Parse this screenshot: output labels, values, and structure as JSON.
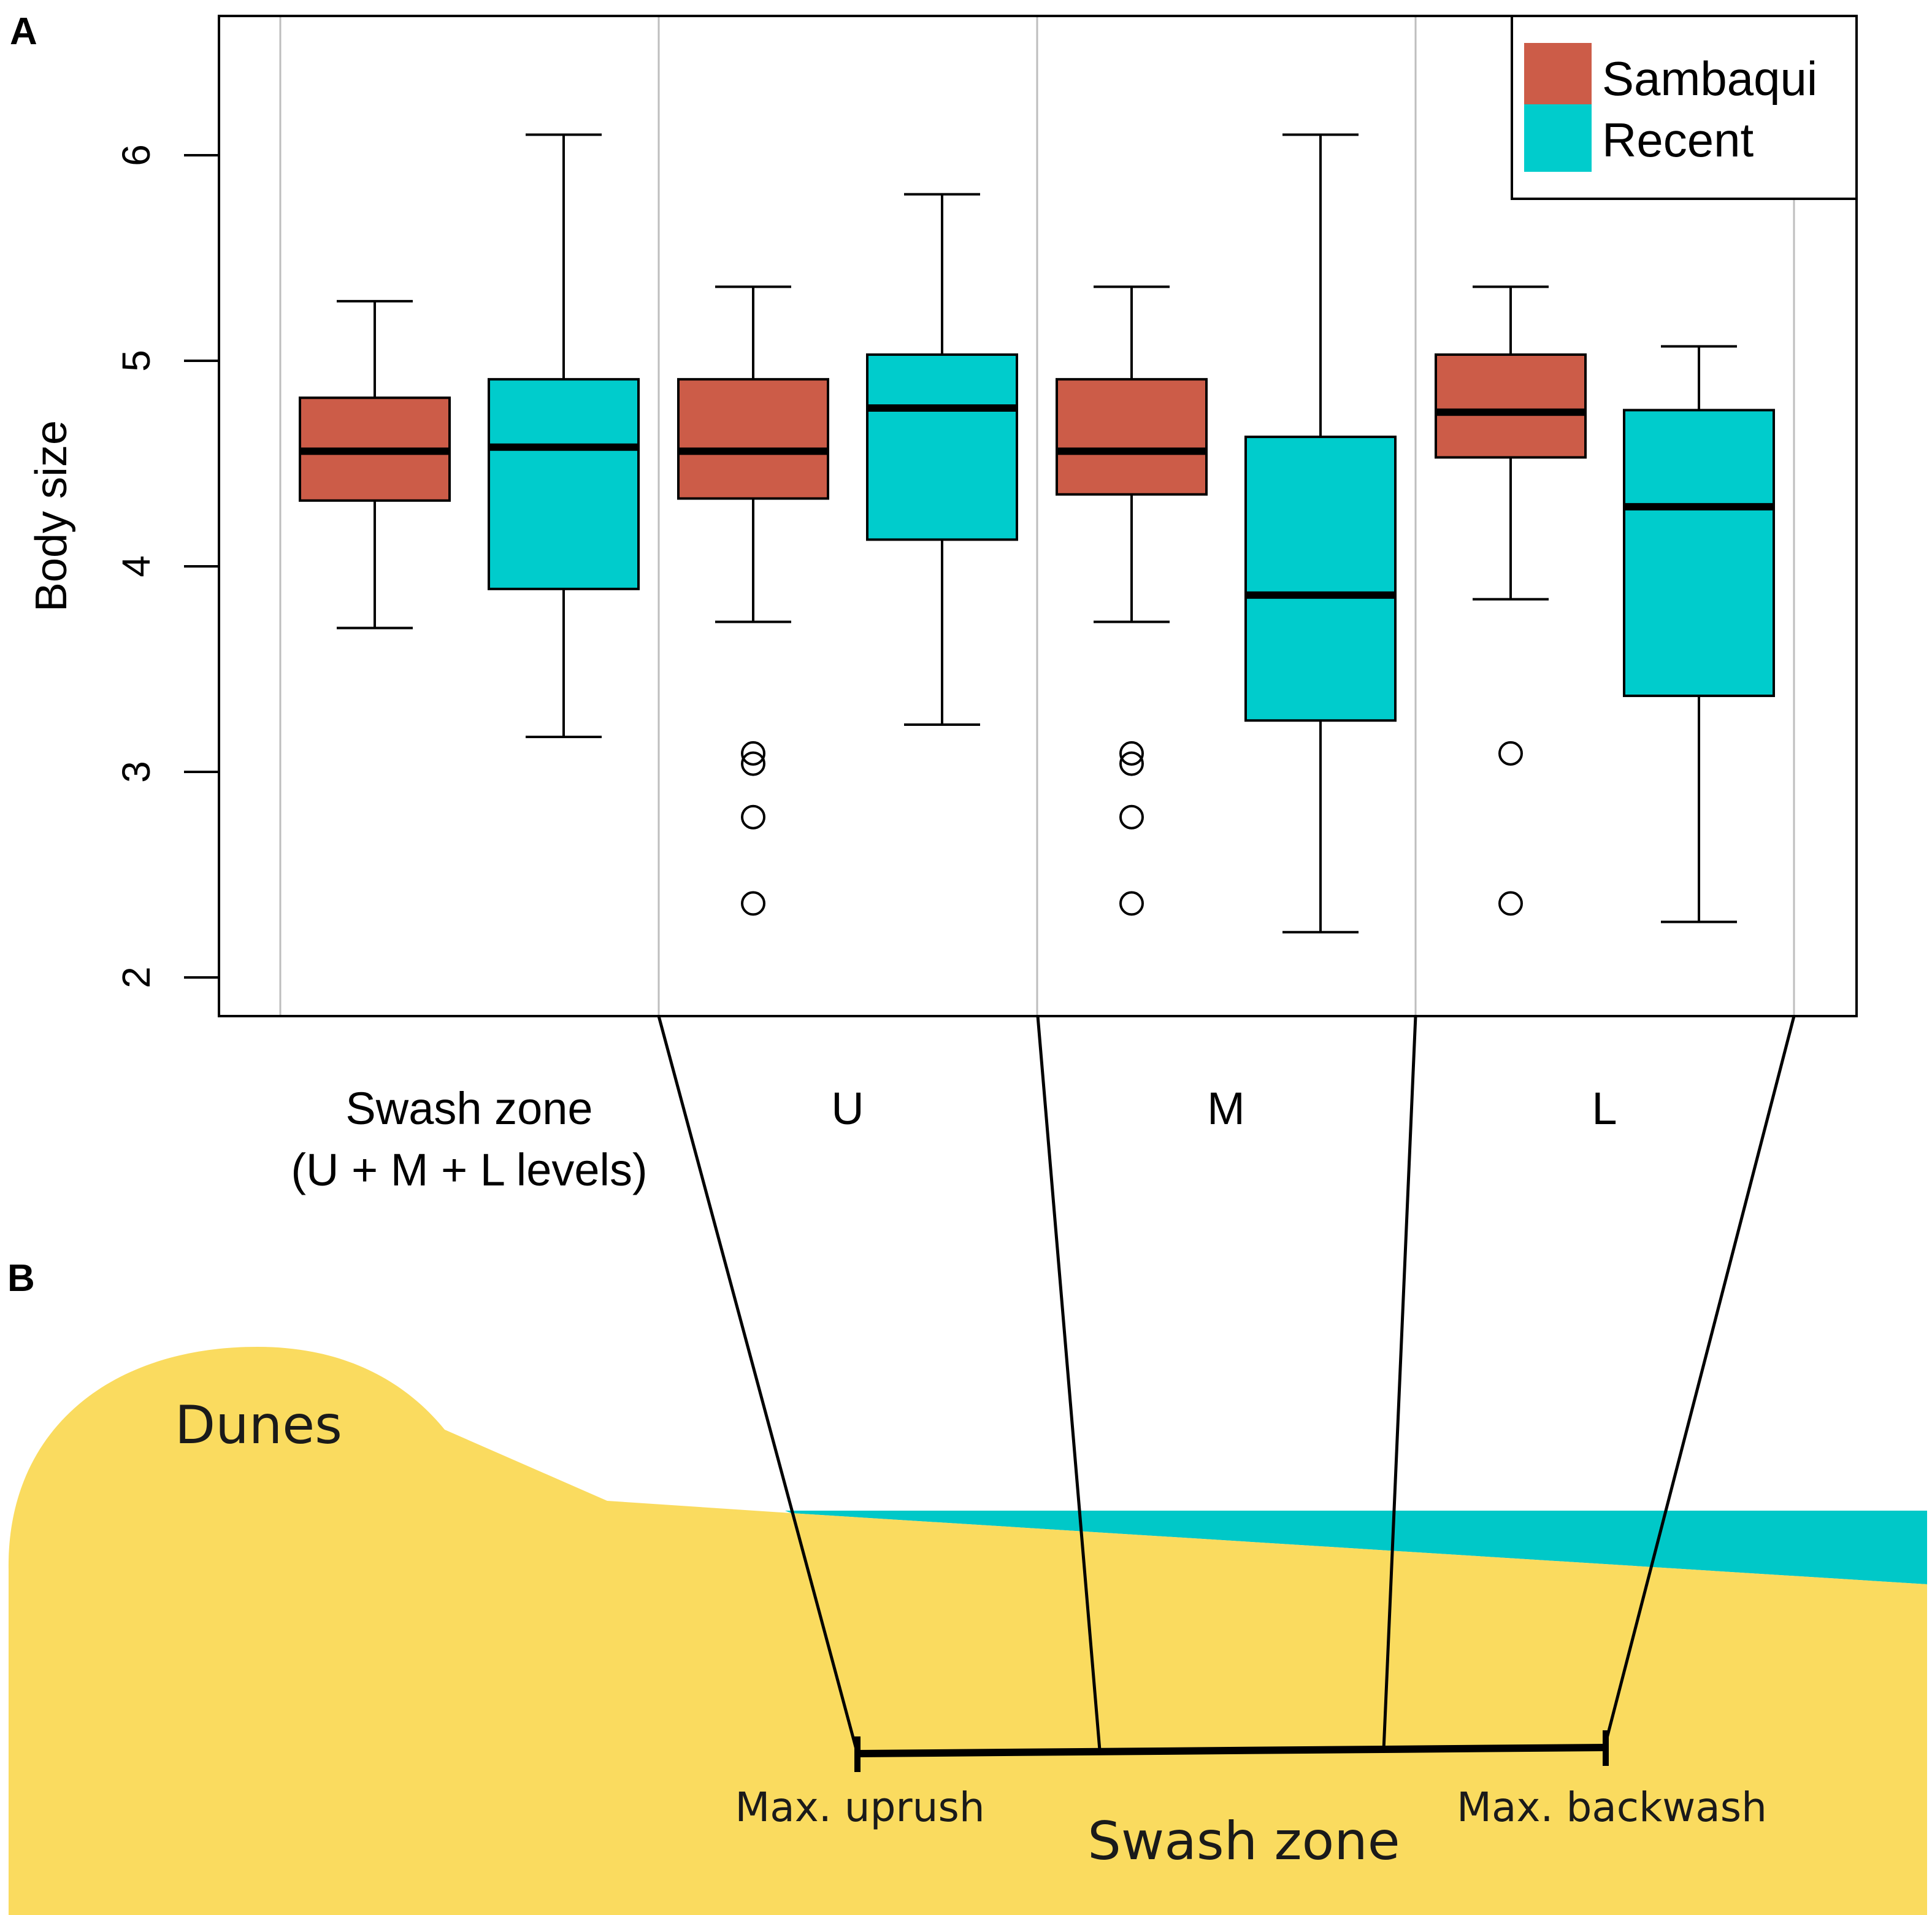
{
  "panels": {
    "a": "A",
    "b": "B"
  },
  "colors": {
    "sambaqui": "#CC5C48",
    "recent": "#00CCCC",
    "sand": "#FADB5F",
    "water": "#00C8C8",
    "gridline": "#BEBEBE"
  },
  "chart_data": {
    "type": "boxplot",
    "ylabel": "Body size",
    "ylim": [
      1.9,
      6.6
    ],
    "yticks": [
      2,
      3,
      4,
      5,
      6
    ],
    "legend": {
      "position": "top-right",
      "entries": [
        {
          "name": "Sambaqui",
          "color": "#CC5C48"
        },
        {
          "name": "Recent",
          "color": "#00CCCC"
        }
      ]
    },
    "groups": [
      {
        "label": "Swash zone",
        "sublabel": "(U + M + L levels)",
        "boxes": [
          {
            "series": "Sambaqui",
            "lower_whisker": 3.7,
            "q1": 4.32,
            "median": 4.56,
            "q3": 4.82,
            "upper_whisker": 5.29,
            "outliers": []
          },
          {
            "series": "Recent",
            "lower_whisker": 3.17,
            "q1": 3.89,
            "median": 4.58,
            "q3": 4.91,
            "upper_whisker": 6.1,
            "outliers": []
          }
        ]
      },
      {
        "label": "U",
        "sublabel": "",
        "boxes": [
          {
            "series": "Sambaqui",
            "lower_whisker": 3.73,
            "q1": 4.33,
            "median": 4.56,
            "q3": 4.91,
            "upper_whisker": 5.36,
            "outliers": [
              3.09,
              3.04,
              2.78,
              2.36
            ]
          },
          {
            "series": "Recent",
            "lower_whisker": 3.23,
            "q1": 4.13,
            "median": 4.77,
            "q3": 5.03,
            "upper_whisker": 5.81,
            "outliers": []
          }
        ]
      },
      {
        "label": "M",
        "sublabel": "",
        "boxes": [
          {
            "series": "Sambaqui",
            "lower_whisker": 3.73,
            "q1": 4.35,
            "median": 4.56,
            "q3": 4.91,
            "upper_whisker": 5.36,
            "outliers": [
              3.09,
              3.04,
              2.78,
              2.36
            ]
          },
          {
            "series": "Recent",
            "lower_whisker": 2.22,
            "q1": 3.25,
            "median": 3.86,
            "q3": 4.63,
            "upper_whisker": 6.1,
            "outliers": []
          }
        ]
      },
      {
        "label": "L",
        "sublabel": "",
        "boxes": [
          {
            "series": "Sambaqui",
            "lower_whisker": 3.84,
            "q1": 4.53,
            "median": 4.75,
            "q3": 5.03,
            "upper_whisker": 5.36,
            "outliers": [
              3.09,
              2.36
            ]
          },
          {
            "series": "Recent",
            "lower_whisker": 2.27,
            "q1": 3.37,
            "median": 4.29,
            "q3": 4.76,
            "upper_whisker": 5.07,
            "outliers": []
          }
        ]
      }
    ]
  },
  "diagram": {
    "dunes_label": "Dunes",
    "max_uprush_label": "Max. uprush",
    "max_backwash_label": "Max. backwash",
    "swash_zone_label": "Swash zone"
  }
}
